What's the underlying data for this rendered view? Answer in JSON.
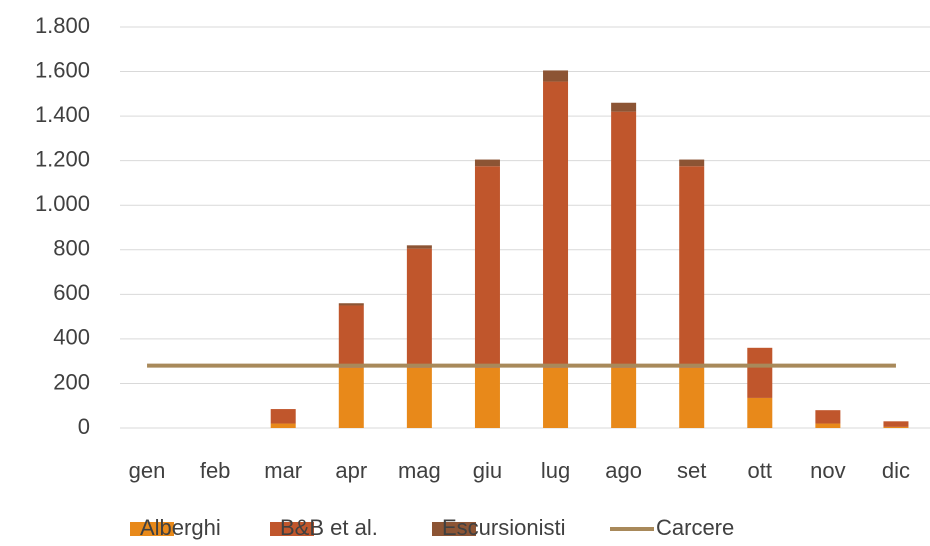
{
  "chart_data": {
    "type": "bar",
    "categories": [
      "gen",
      "feb",
      "mar",
      "apr",
      "mag",
      "giu",
      "lug",
      "ago",
      "set",
      "ott",
      "nov",
      "dic"
    ],
    "series": [
      {
        "name": "Alberghi",
        "color": "#e8891a",
        "values": [
          0,
          0,
          20,
          270,
          270,
          270,
          270,
          270,
          270,
          135,
          20,
          5
        ]
      },
      {
        "name": "B&B et al.",
        "color": "#c0562c",
        "values": [
          0,
          0,
          65,
          280,
          535,
          905,
          1285,
          1150,
          905,
          225,
          60,
          25
        ]
      },
      {
        "name": "Escursionisti",
        "color": "#8c5434",
        "values": [
          0,
          0,
          0,
          10,
          15,
          30,
          50,
          40,
          30,
          0,
          0,
          0
        ]
      },
      {
        "name": "Carcere",
        "type": "line",
        "color": "#a8895a",
        "values": [
          280,
          280,
          280,
          280,
          280,
          280,
          280,
          280,
          280,
          280,
          280,
          280
        ]
      }
    ],
    "stacked": true,
    "ylim": [
      0,
      1800
    ],
    "yticks": [
      0,
      200,
      400,
      600,
      800,
      {
        "value": 1000,
        "label": "1.000"
      },
      {
        "value": 1200,
        "label": "1.200"
      },
      {
        "value": 1400,
        "label": "1.400"
      },
      {
        "value": 1600,
        "label": "1.600"
      },
      {
        "value": 1800,
        "label": "1.800"
      }
    ],
    "grid": true,
    "legend": "bottom"
  }
}
